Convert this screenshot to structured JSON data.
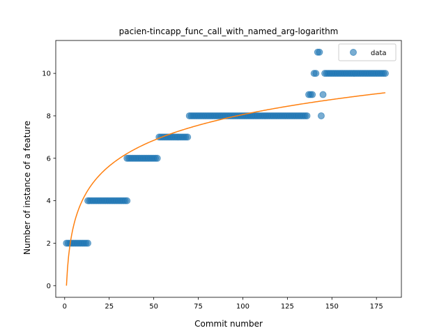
{
  "chart_data": {
    "type": "scatter",
    "title": "pacien-tincapp_func_call_with_named_arg-logarithm",
    "xlabel": "Commit number",
    "ylabel": "Number of instance of a feature",
    "xlim": [
      -5,
      189
    ],
    "ylim": [
      -0.55,
      11.55
    ],
    "xticks": [
      0,
      25,
      50,
      75,
      100,
      125,
      150,
      175
    ],
    "yticks": [
      0,
      2,
      4,
      6,
      8,
      10
    ],
    "legend": {
      "position": "top-right",
      "entries": [
        "data"
      ]
    },
    "colors": {
      "data": "#1f77b4",
      "fit": "#ff7f0e"
    },
    "series": [
      {
        "name": "data",
        "kind": "scatter",
        "segments": [
          {
            "x_from": 1,
            "x_to": 13,
            "y": 2
          },
          {
            "x_from": 13,
            "x_to": 35,
            "y": 4
          },
          {
            "x_from": 35,
            "x_to": 52,
            "y": 6
          },
          {
            "x_from": 53,
            "x_to": 69,
            "y": 7
          },
          {
            "x_from": 70,
            "x_to": 136,
            "y": 8
          },
          {
            "x_from": 137,
            "x_to": 139,
            "y": 9
          },
          {
            "x_from": 140,
            "x_to": 141,
            "y": 10
          },
          {
            "x_from": 142,
            "x_to": 143,
            "y": 11
          },
          {
            "x_from": 144,
            "x_to": 144,
            "y": 8
          },
          {
            "x_from": 145,
            "x_to": 145,
            "y": 9
          },
          {
            "x_from": 146,
            "x_to": 180,
            "y": 10
          }
        ]
      },
      {
        "name": "",
        "kind": "line",
        "model": "logarithmic",
        "a": 1.75,
        "b": 0,
        "x_from": 1,
        "x_to": 180
      }
    ]
  }
}
